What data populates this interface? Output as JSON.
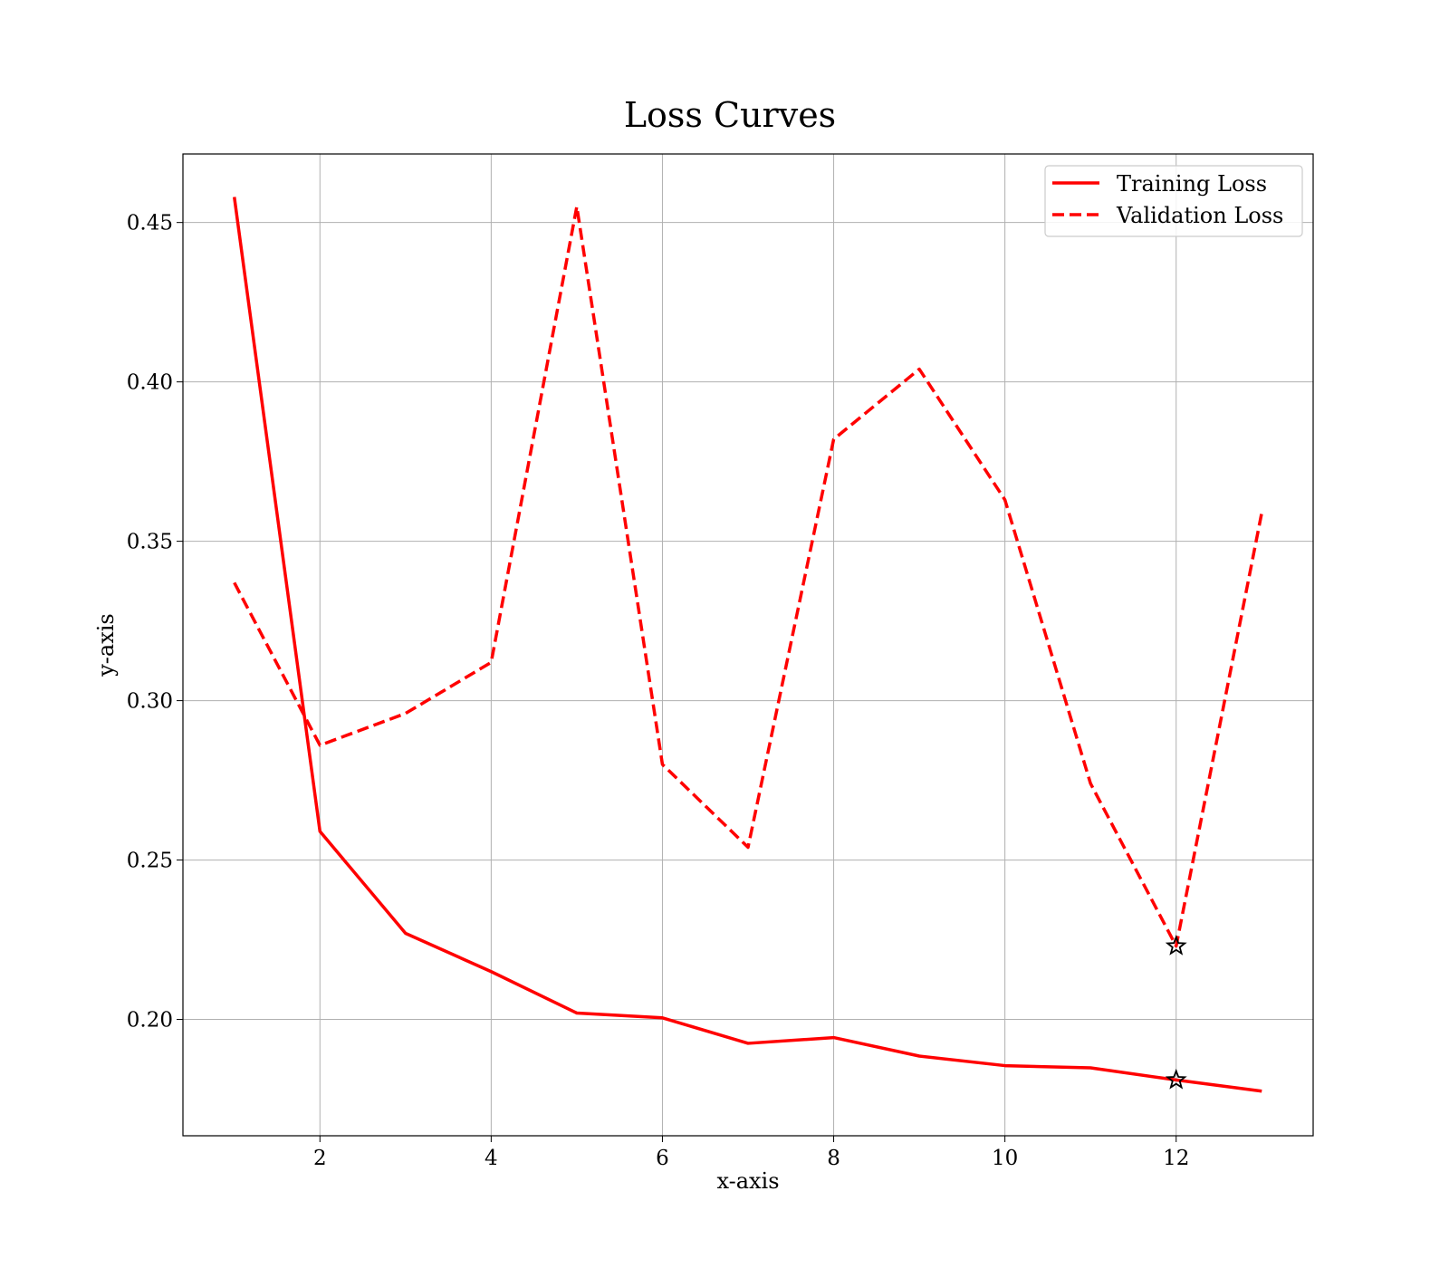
{
  "chart_data": {
    "type": "line",
    "title": "Loss Curves",
    "xlabel": "x-axis",
    "ylabel": "y-axis",
    "xlim": [
      0.4,
      13.6
    ],
    "ylim": [
      0.1635,
      0.4715
    ],
    "xticks": [
      2,
      4,
      6,
      8,
      10,
      12
    ],
    "xtick_labels": [
      "2",
      "4",
      "6",
      "8",
      "10",
      "12"
    ],
    "yticks": [
      0.2,
      0.25,
      0.3,
      0.35,
      0.4,
      0.45
    ],
    "ytick_labels": [
      "0.20",
      "0.25",
      "0.30",
      "0.35",
      "0.40",
      "0.45"
    ],
    "grid": true,
    "legend_position": "top-right",
    "x": [
      1,
      2,
      3,
      4,
      5,
      6,
      7,
      8,
      9,
      10,
      11,
      12,
      13
    ],
    "series": [
      {
        "name": "Training Loss",
        "style": "solid",
        "color": "#ff0000",
        "values": [
          0.458,
          0.259,
          0.227,
          0.215,
          0.202,
          0.2005,
          0.1925,
          0.1943,
          0.1885,
          0.1855,
          0.1848,
          0.181,
          0.1775
        ]
      },
      {
        "name": "Validation Loss",
        "style": "dashed",
        "color": "#ff0000",
        "values": [
          0.337,
          0.286,
          0.296,
          0.312,
          0.455,
          0.28,
          0.254,
          0.382,
          0.404,
          0.363,
          0.274,
          0.223,
          0.359
        ]
      }
    ],
    "markers": [
      {
        "series": "Training Loss",
        "x": 12,
        "y": 0.181,
        "symbol": "star",
        "color": "#000000"
      },
      {
        "series": "Validation Loss",
        "x": 12,
        "y": 0.223,
        "symbol": "star",
        "color": "#000000"
      }
    ]
  }
}
